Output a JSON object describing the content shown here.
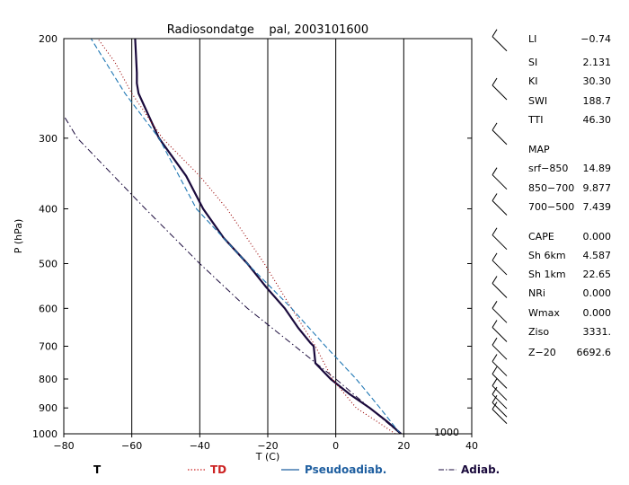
{
  "chart_data": {
    "type": "line",
    "title": "Radiosondatge    pal, 2003101600",
    "xlabel": "T (C)",
    "ylabel": "P (hPa)",
    "xlim": [
      -80,
      40
    ],
    "ylim": [
      1000,
      200
    ],
    "y_scale": "log",
    "x_ticks": [
      "−80",
      "−60",
      "−40",
      "−20",
      "0",
      "20",
      "40"
    ],
    "x_tick_values": [
      -80,
      -60,
      -40,
      -20,
      0,
      20,
      40
    ],
    "y_ticks": [
      "200",
      "300",
      "400",
      "500",
      "600",
      "700",
      "800",
      "900",
      "1000"
    ],
    "y_tick_values": [
      200,
      300,
      400,
      500,
      600,
      700,
      800,
      900,
      1000
    ],
    "right_label_1000": "1000",
    "grid_isotherms": [
      -60,
      -40,
      -20,
      0,
      20
    ],
    "series": [
      {
        "name": "T",
        "color": "#1a0a3c",
        "style": "solid",
        "points": [
          [
            19.2,
            1000
          ],
          [
            15,
            950
          ],
          [
            10,
            900
          ],
          [
            4,
            850
          ],
          [
            -1.5,
            800
          ],
          [
            -6,
            750
          ],
          [
            -6.5,
            700
          ],
          [
            -7.5,
            690
          ],
          [
            -11,
            650
          ],
          [
            -15,
            600
          ],
          [
            -20.5,
            550
          ],
          [
            -26,
            500
          ],
          [
            -33,
            450
          ],
          [
            -39,
            400
          ],
          [
            -44,
            350
          ],
          [
            -52,
            300
          ],
          [
            -58,
            250
          ],
          [
            -58.5,
            240
          ],
          [
            -58.5,
            230
          ],
          [
            -59,
            200
          ]
        ]
      },
      {
        "name": "TD",
        "color": "#990000",
        "style": "dotted",
        "points": [
          [
            17.5,
            1000
          ],
          [
            12,
            950
          ],
          [
            6,
            900
          ],
          [
            -1,
            800
          ],
          [
            -6,
            700
          ],
          [
            -13,
            600
          ],
          [
            -21,
            500
          ],
          [
            -32,
            400
          ],
          [
            -40,
            350
          ],
          [
            -51,
            300
          ],
          [
            -60,
            250
          ],
          [
            -65,
            220
          ],
          [
            -70,
            200
          ]
        ]
      },
      {
        "name": "Pseudoadiab.",
        "color": "#1f77b4",
        "style": "dashed",
        "points": [
          [
            19,
            1000
          ],
          [
            13,
            900
          ],
          [
            6,
            800
          ],
          [
            -3,
            700
          ],
          [
            -13,
            600
          ],
          [
            -26,
            500
          ],
          [
            -41,
            400
          ],
          [
            -52,
            300
          ],
          [
            -62,
            250
          ],
          [
            -72,
            200
          ]
        ]
      },
      {
        "name": "Adiab.",
        "color": "#1a0a3c",
        "style": "dashdot",
        "points": [
          [
            19,
            1000
          ],
          [
            10,
            900
          ],
          [
            0,
            800
          ],
          [
            -12,
            700
          ],
          [
            -26,
            600
          ],
          [
            -40,
            500
          ],
          [
            -56,
            400
          ],
          [
            -76,
            300
          ],
          [
            -84,
            250
          ]
        ]
      }
    ],
    "legend": [
      {
        "label": "T",
        "color": "#000000"
      },
      {
        "label": "TD",
        "color": "#cc2222"
      },
      {
        "label": "Pseudoadiab.",
        "color": "#1f5fa0"
      },
      {
        "label": "Adiab.",
        "color": "#1a0a3c"
      }
    ],
    "legend_position": "bottom",
    "wind_barb_heights": [
      205,
      250,
      300,
      360,
      400,
      460,
      510,
      560,
      620,
      670,
      720,
      770,
      810,
      850,
      880,
      910,
      935
    ],
    "indices": [
      {
        "name": "LI",
        "value": "−0.74"
      },
      {
        "name": "SI",
        "value": "2.131"
      },
      {
        "name": "KI",
        "value": "30.30"
      },
      {
        "name": "SWI",
        "value": "188.7"
      },
      {
        "name": "TTI",
        "value": "46.30"
      },
      {
        "name": "MAP",
        "value": ""
      },
      {
        "name": "srf−850",
        "value": "14.89"
      },
      {
        "name": "850−700",
        "value": "9.877"
      },
      {
        "name": "700−500",
        "value": "7.439"
      },
      {
        "name": "CAPE",
        "value": "0.000"
      },
      {
        "name": "Sh 6km",
        "value": "4.587"
      },
      {
        "name": "Sh 1km",
        "value": "22.65"
      },
      {
        "name": "NRi",
        "value": "0.000"
      },
      {
        "name": "Wmax",
        "value": "0.000"
      },
      {
        "name": "Ziso",
        "value": "3331."
      },
      {
        "name": "Z−20",
        "value": "6692.6"
      }
    ]
  }
}
